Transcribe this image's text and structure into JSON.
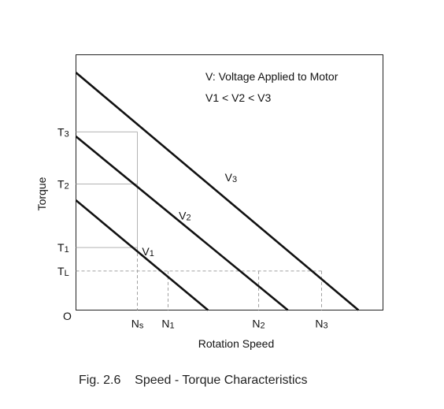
{
  "chart_data": {
    "type": "line",
    "title": "",
    "xlabel": "Rotation Speed",
    "ylabel": "Torque",
    "origin_label": "O",
    "caption": "Fig. 2.6    Speed - Torque Characteristics",
    "annotations": [
      "V: Voltage Applied to Motor",
      "V1 < V2 < V3"
    ],
    "xlim": [
      0,
      10
    ],
    "ylim": [
      0,
      10
    ],
    "x_ticks": [
      {
        "label": "Ns",
        "base": "N",
        "sub": "s",
        "value": 2.0
      },
      {
        "label": "N1",
        "base": "N",
        "sub": "1",
        "value": 3.0
      },
      {
        "label": "N2",
        "base": "N",
        "sub": "2",
        "value": 5.95
      },
      {
        "label": "N3",
        "base": "N",
        "sub": "3",
        "value": 8.0
      }
    ],
    "y_ticks": [
      {
        "label": "T3",
        "base": "T",
        "sub": "3",
        "value": 6.98
      },
      {
        "label": "T2",
        "base": "T",
        "sub": "2",
        "value": 4.94
      },
      {
        "label": "T1",
        "base": "T",
        "sub": "1",
        "value": 2.45
      },
      {
        "label": "TL",
        "base": "T",
        "sub": "L",
        "value": 1.53
      }
    ],
    "series": [
      {
        "name": "V1",
        "base": "V",
        "sub": "1",
        "points": [
          [
            0,
            4.3
          ],
          [
            4.3,
            0
          ]
        ],
        "label_at": [
          2.15,
          2.15
        ]
      },
      {
        "name": "V2",
        "base": "V",
        "sub": "2",
        "points": [
          [
            0,
            6.8
          ],
          [
            6.9,
            0
          ]
        ],
        "label_at": [
          3.35,
          3.55
        ]
      },
      {
        "name": "V3",
        "base": "V",
        "sub": "3",
        "points": [
          [
            0,
            9.3
          ],
          [
            9.2,
            0
          ]
        ],
        "label_at": [
          4.85,
          5.05
        ]
      }
    ],
    "guides": {
      "solid": {
        "horizontal": [
          "T3",
          "T2",
          "T1"
        ],
        "vertical_from": [
          "T3",
          "T1"
        ]
      },
      "dashed": {
        "horizontal_at": "TL",
        "vertical": [
          "N1",
          "N2",
          "N3"
        ],
        "vertical_full": [
          "Ns"
        ]
      }
    },
    "grid": false,
    "legend": "none"
  }
}
